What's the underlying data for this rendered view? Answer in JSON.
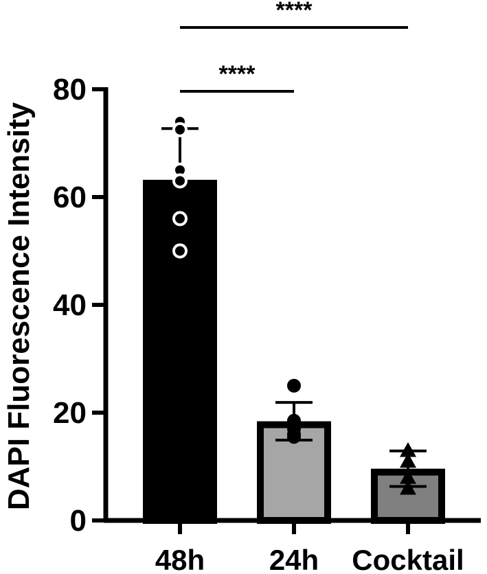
{
  "chart_data": {
    "type": "bar",
    "title": "",
    "xlabel": "",
    "ylabel": "DAPI Fluorescence Intensity",
    "ylim": [
      0,
      80
    ],
    "yticks": [
      0,
      20,
      40,
      60,
      80
    ],
    "grid": false,
    "categories": [
      "48h",
      "24h",
      "Cocktail"
    ],
    "values": [
      63.2,
      18.4,
      9.6
    ],
    "errors": [
      9.5,
      3.5,
      3.3
    ],
    "colors": [
      "#000000",
      "#a6a6a6",
      "#808080"
    ],
    "markers": [
      "open-circle",
      "filled-circle",
      "filled-triangle"
    ],
    "points": [
      [
        74,
        72.5,
        65,
        63,
        56,
        50
      ],
      [
        25,
        18.5,
        17,
        16,
        15.5
      ],
      [
        13,
        11,
        8,
        6
      ]
    ],
    "significance": [
      {
        "from": "48h",
        "to": "24h",
        "label": "****"
      },
      {
        "from": "48h",
        "to": "Cocktail",
        "label": "****"
      }
    ]
  }
}
